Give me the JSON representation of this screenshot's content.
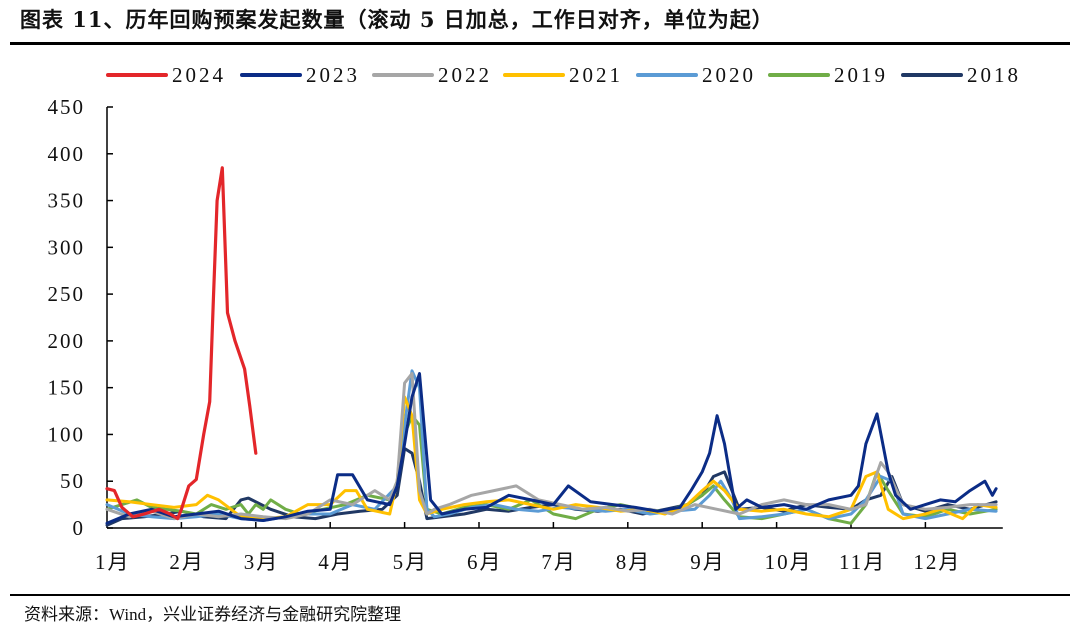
{
  "title": "图表 11、历年回购预案发起数量（滚动 5 日加总，工作日对齐，单位为起）",
  "source": "资料来源：Wind，兴业证券经济与金融研究院整理",
  "chart_data": {
    "type": "line",
    "title": "图表 11、历年回购预案发起数量（滚动 5 日加总，工作日对齐，单位为起）",
    "xlabel": "",
    "ylabel": "",
    "ylim": [
      0,
      450
    ],
    "yticks": [
      0,
      50,
      100,
      150,
      200,
      250,
      300,
      350,
      400,
      450
    ],
    "categories": [
      "1月",
      "2月",
      "3月",
      "4月",
      "5月",
      "6月",
      "7月",
      "8月",
      "9月",
      "10月",
      "11月",
      "12月"
    ],
    "grid": false,
    "legend_position": "top",
    "note": "x values are month-index positions (0 = start of 1月, 12 = end of 12月)",
    "series": [
      {
        "name": "2024",
        "color": "#E3262A",
        "width": 3.2,
        "x": [
          0,
          0.1,
          0.2,
          0.35,
          0.5,
          0.7,
          0.85,
          0.95,
          1.0,
          1.1,
          1.2,
          1.3,
          1.38,
          1.43,
          1.48,
          1.55,
          1.62,
          1.72,
          1.85,
          1.92,
          2.0
        ],
        "values": [
          42,
          40,
          22,
          12,
          15,
          20,
          15,
          10,
          20,
          45,
          52,
          100,
          135,
          245,
          350,
          385,
          230,
          200,
          170,
          130,
          80
        ]
      },
      {
        "name": "2023",
        "color": "#0B2C86",
        "width": 3,
        "x": [
          0,
          0.3,
          0.6,
          0.9,
          1.2,
          1.5,
          1.8,
          2.1,
          2.4,
          2.7,
          3.0,
          3.1,
          3.3,
          3.5,
          3.8,
          3.9,
          4.0,
          4.1,
          4.2,
          4.35,
          4.5,
          4.8,
          5.1,
          5.4,
          5.7,
          6.0,
          6.2,
          6.5,
          6.8,
          7.1,
          7.4,
          7.7,
          7.85,
          8.0,
          8.1,
          8.2,
          8.3,
          8.45,
          8.6,
          8.8,
          9.1,
          9.4,
          9.7,
          10.0,
          10.1,
          10.2,
          10.35,
          10.5,
          10.6,
          10.8,
          11.0,
          11.2,
          11.4,
          11.6,
          11.8,
          11.9,
          11.95
        ],
        "values": [
          5,
          15,
          20,
          12,
          15,
          18,
          10,
          8,
          12,
          18,
          20,
          57,
          57,
          30,
          25,
          45,
          90,
          140,
          165,
          30,
          15,
          20,
          22,
          35,
          30,
          25,
          45,
          28,
          25,
          22,
          18,
          22,
          40,
          60,
          80,
          120,
          90,
          20,
          30,
          22,
          25,
          20,
          30,
          35,
          45,
          90,
          122,
          60,
          35,
          20,
          25,
          30,
          28,
          40,
          50,
          35,
          42
        ]
      },
      {
        "name": "2022",
        "color": "#A6A6A6",
        "width": 3,
        "x": [
          0,
          0.3,
          0.6,
          0.9,
          1.2,
          1.5,
          1.8,
          2.1,
          2.4,
          2.7,
          3.0,
          3.3,
          3.6,
          3.8,
          3.9,
          4.0,
          4.1,
          4.2,
          4.3,
          4.4,
          4.6,
          4.9,
          5.2,
          5.5,
          5.8,
          6.1,
          6.4,
          6.7,
          7.0,
          7.3,
          7.6,
          7.9,
          8.2,
          8.5,
          8.8,
          9.1,
          9.4,
          9.7,
          10.0,
          10.2,
          10.4,
          10.5,
          10.7,
          11.0,
          11.3,
          11.6,
          11.95
        ],
        "values": [
          20,
          12,
          18,
          10,
          15,
          12,
          15,
          12,
          10,
          15,
          30,
          25,
          40,
          30,
          50,
          155,
          165,
          40,
          15,
          20,
          25,
          35,
          40,
          45,
          30,
          25,
          20,
          22,
          18,
          20,
          15,
          25,
          20,
          15,
          25,
          30,
          25,
          25,
          20,
          25,
          70,
          60,
          25,
          20,
          22,
          25,
          25
        ]
      },
      {
        "name": "2021",
        "color": "#FFC000",
        "width": 3,
        "x": [
          0,
          0.3,
          0.6,
          0.9,
          1.2,
          1.35,
          1.5,
          1.8,
          2.1,
          2.4,
          2.7,
          3.0,
          3.2,
          3.35,
          3.5,
          3.8,
          3.9,
          4.0,
          4.1,
          4.2,
          4.3,
          4.5,
          4.8,
          5.1,
          5.4,
          5.7,
          6.0,
          6.3,
          6.6,
          6.9,
          7.2,
          7.5,
          7.8,
          8.0,
          8.15,
          8.3,
          8.5,
          8.8,
          9.1,
          9.4,
          9.7,
          10.0,
          10.2,
          10.35,
          10.5,
          10.7,
          11.0,
          11.2,
          11.5,
          11.7,
          11.95
        ],
        "values": [
          30,
          28,
          25,
          22,
          25,
          35,
          30,
          12,
          10,
          12,
          25,
          25,
          40,
          40,
          20,
          15,
          50,
          140,
          120,
          30,
          15,
          20,
          25,
          28,
          30,
          25,
          20,
          25,
          22,
          18,
          20,
          15,
          25,
          40,
          50,
          40,
          20,
          18,
          20,
          15,
          12,
          20,
          55,
          60,
          20,
          10,
          15,
          20,
          10,
          25,
          22
        ]
      },
      {
        "name": "2020",
        "color": "#5B9BD5",
        "width": 3,
        "x": [
          0,
          0.3,
          0.6,
          0.9,
          1.2,
          1.5,
          1.8,
          2.1,
          2.4,
          2.7,
          3.0,
          3.3,
          3.6,
          3.9,
          4.0,
          4.1,
          4.2,
          4.3,
          4.4,
          4.6,
          4.9,
          5.2,
          5.5,
          5.8,
          6.1,
          6.4,
          6.7,
          7.0,
          7.3,
          7.6,
          7.9,
          8.1,
          8.25,
          8.4,
          8.5,
          8.8,
          9.1,
          9.4,
          9.7,
          10.0,
          10.2,
          10.4,
          10.55,
          10.7,
          11.0,
          11.3,
          11.6,
          11.95
        ],
        "values": [
          25,
          15,
          12,
          10,
          12,
          15,
          10,
          8,
          12,
          15,
          15,
          25,
          20,
          45,
          110,
          168,
          150,
          20,
          12,
          15,
          22,
          25,
          20,
          18,
          22,
          20,
          18,
          20,
          15,
          18,
          20,
          35,
          50,
          30,
          10,
          12,
          15,
          20,
          10,
          15,
          30,
          55,
          50,
          15,
          10,
          15,
          20,
          18
        ]
      },
      {
        "name": "2019",
        "color": "#70AD47",
        "width": 3,
        "x": [
          0,
          0.2,
          0.4,
          0.6,
          0.8,
          1.0,
          1.2,
          1.4,
          1.6,
          1.8,
          1.9,
          2.0,
          2.1,
          2.2,
          2.4,
          2.6,
          2.9,
          3.2,
          3.5,
          3.8,
          3.9,
          4.0,
          4.1,
          4.2,
          4.3,
          4.5,
          4.8,
          5.1,
          5.4,
          5.7,
          6.0,
          6.3,
          6.6,
          6.9,
          7.2,
          7.5,
          7.8,
          8.0,
          8.15,
          8.3,
          8.5,
          8.8,
          9.1,
          9.4,
          9.7,
          10.0,
          10.2,
          10.35,
          10.5,
          10.7,
          11.0,
          11.3,
          11.6,
          11.95
        ],
        "values": [
          20,
          25,
          30,
          22,
          20,
          18,
          15,
          25,
          20,
          25,
          15,
          25,
          20,
          30,
          20,
          15,
          20,
          25,
          35,
          30,
          50,
          100,
          120,
          110,
          20,
          15,
          22,
          25,
          20,
          30,
          15,
          10,
          20,
          25,
          20,
          18,
          25,
          35,
          45,
          30,
          12,
          10,
          15,
          20,
          10,
          5,
          25,
          60,
          40,
          15,
          12,
          20,
          15,
          20
        ]
      },
      {
        "name": "2018",
        "color": "#203864",
        "width": 3,
        "x": [
          0,
          0.2,
          0.5,
          0.8,
          1.0,
          1.3,
          1.6,
          1.8,
          1.9,
          2.0,
          2.2,
          2.5,
          2.8,
          3.1,
          3.4,
          3.7,
          3.9,
          4.0,
          4.1,
          4.2,
          4.3,
          4.5,
          4.8,
          5.1,
          5.4,
          5.7,
          6.0,
          6.3,
          6.6,
          6.9,
          7.2,
          7.5,
          7.8,
          8.0,
          8.15,
          8.3,
          8.5,
          8.8,
          9.1,
          9.4,
          9.7,
          10.0,
          10.2,
          10.4,
          10.55,
          10.7,
          11.0,
          11.3,
          11.6,
          11.95
        ],
        "values": [
          3,
          10,
          12,
          15,
          18,
          12,
          10,
          30,
          32,
          28,
          20,
          12,
          10,
          15,
          18,
          20,
          35,
          85,
          80,
          50,
          10,
          12,
          15,
          20,
          18,
          22,
          25,
          20,
          18,
          20,
          15,
          20,
          25,
          35,
          55,
          60,
          20,
          22,
          18,
          25,
          22,
          20,
          30,
          35,
          55,
          25,
          18,
          25,
          20,
          28
        ]
      }
    ]
  },
  "legend": [
    {
      "label": "2024",
      "color": "#E3262A"
    },
    {
      "label": "2023",
      "color": "#0B2C86"
    },
    {
      "label": "2022",
      "color": "#A6A6A6"
    },
    {
      "label": "2021",
      "color": "#FFC000"
    },
    {
      "label": "2020",
      "color": "#5B9BD5"
    },
    {
      "label": "2019",
      "color": "#70AD47"
    },
    {
      "label": "2018",
      "color": "#203864"
    }
  ],
  "axes": {
    "y_labels": [
      "0",
      "50",
      "100",
      "150",
      "200",
      "250",
      "300",
      "350",
      "400",
      "450"
    ],
    "x_labels": [
      "1月",
      "2月",
      "3月",
      "4月",
      "5月",
      "6月",
      "7月",
      "8月",
      "9月",
      "10月",
      "11月",
      "12月"
    ]
  }
}
